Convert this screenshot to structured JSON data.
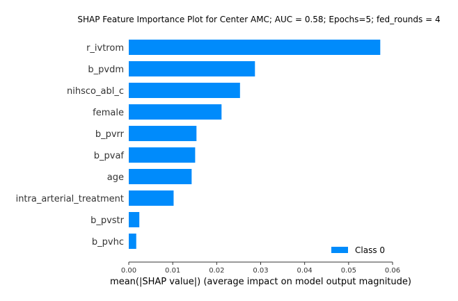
{
  "chart_data": {
    "type": "bar",
    "orientation": "horizontal",
    "title": "SHAP Feature Importance Plot for Center AMC; AUC = 0.58; Epochs=5; fed_rounds = 4",
    "xlabel": "mean(|SHAP value|) (average impact on model output magnitude)",
    "ylabel": "",
    "xlim": [
      0,
      0.06
    ],
    "xticks": [
      "0.00",
      "0.01",
      "0.02",
      "0.03",
      "0.04",
      "0.05",
      "0.06"
    ],
    "categories": [
      "r_ivtrom",
      "b_pvdm",
      "nihsco_abl_c",
      "female",
      "b_pvrr",
      "b_pvaf",
      "age",
      "intra_arterial_treatment",
      "b_pvstr",
      "b_pvhc"
    ],
    "series": [
      {
        "name": "Class 0",
        "color": "#008bfb",
        "values": [
          0.0572,
          0.0287,
          0.0253,
          0.0211,
          0.0154,
          0.0151,
          0.0143,
          0.0102,
          0.0024,
          0.0017
        ]
      }
    ],
    "grid": false,
    "legend_position": "lower-right"
  }
}
